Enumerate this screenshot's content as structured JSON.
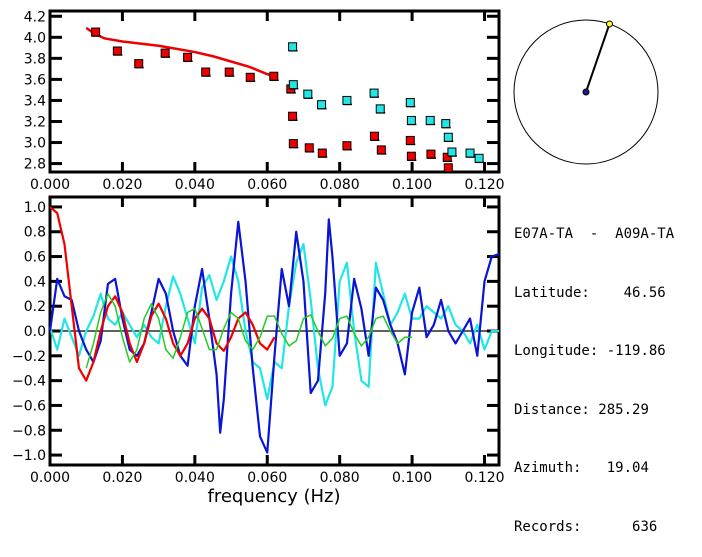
{
  "colors": {
    "red": "#ee0000",
    "cyan": "#22e6e6",
    "blue": "#0a14d4",
    "green": "#22cc22",
    "black": "#000000",
    "yellow": "#ffff33",
    "navy": "#1a1a8a"
  },
  "info_panel": {
    "pair": "E07A-TA  -  A09A-TA",
    "latitude_label": "Latitude:",
    "latitude": "46.56",
    "longitude_label": "Longitude:",
    "longitude": "-119.86",
    "distance_label": "Distance:",
    "distance": "285.29",
    "azimuth_label": "Azimuth:",
    "azimuth": "19.04",
    "records_label": "Records:",
    "records": "636"
  },
  "chart_data": [
    {
      "type": "scatter",
      "title": "",
      "xlabel": "",
      "ylabel": "",
      "xlim": [
        0.0,
        0.124
      ],
      "ylim": [
        2.72,
        4.25
      ],
      "xticks": [
        "0.000",
        "0.020",
        "0.040",
        "0.060",
        "0.080",
        "0.100",
        "0.120"
      ],
      "yticks": [
        "2.8",
        "3.0",
        "3.2",
        "3.4",
        "3.6",
        "3.8",
        "4.0",
        "4.2"
      ],
      "curve": {
        "name": "model",
        "color": "red",
        "x": [
          0.01,
          0.012,
          0.015,
          0.02,
          0.025,
          0.03,
          0.035,
          0.04,
          0.045,
          0.05,
          0.055,
          0.06,
          0.062
        ],
        "y": [
          4.09,
          4.04,
          3.99,
          3.96,
          3.94,
          3.92,
          3.89,
          3.86,
          3.82,
          3.77,
          3.72,
          3.65,
          3.63
        ]
      },
      "series": [
        {
          "name": "red-points",
          "color": "red",
          "x": [
            0.0126,
            0.0186,
            0.0245,
            0.0318,
            0.038,
            0.043,
            0.0495,
            0.0553,
            0.0618,
            0.0665,
            0.067,
            0.0672,
            0.0716,
            0.0752,
            0.082,
            0.0896,
            0.0915,
            0.0995,
            0.0998,
            0.1052,
            0.1097,
            0.11
          ],
          "y": [
            4.05,
            3.87,
            3.75,
            3.85,
            3.81,
            3.67,
            3.67,
            3.62,
            3.63,
            3.51,
            3.25,
            2.99,
            2.95,
            2.9,
            2.97,
            3.06,
            2.93,
            3.02,
            2.87,
            2.89,
            2.86,
            2.76
          ]
        },
        {
          "name": "cyan-points",
          "color": "cyan",
          "x": [
            0.067,
            0.0672,
            0.0712,
            0.075,
            0.082,
            0.0895,
            0.0912,
            0.0995,
            0.0998,
            0.105,
            0.1093,
            0.11,
            0.111,
            0.116,
            0.1185
          ],
          "y": [
            3.91,
            3.55,
            3.46,
            3.36,
            3.4,
            3.47,
            3.32,
            3.38,
            3.21,
            3.21,
            3.18,
            3.05,
            2.91,
            2.9,
            2.85
          ]
        }
      ]
    },
    {
      "type": "line",
      "title": "",
      "xlabel": "frequency (Hz)",
      "ylabel": "",
      "xlim": [
        0.0,
        0.124
      ],
      "ylim": [
        -1.08,
        1.08
      ],
      "xticks": [
        "0.000",
        "0.020",
        "0.040",
        "0.060",
        "0.080",
        "0.100",
        "0.120"
      ],
      "yticks": [
        "-1.0",
        "-0.8",
        "-0.6",
        "-0.4",
        "-0.2",
        "0.0",
        "0.2",
        "0.4",
        "0.6",
        "0.8",
        "1.0"
      ],
      "series": [
        {
          "name": "blue",
          "color": "blue",
          "x": [
            0.0,
            0.002,
            0.004,
            0.006,
            0.008,
            0.01,
            0.012,
            0.014,
            0.016,
            0.018,
            0.02,
            0.022,
            0.024,
            0.026,
            0.028,
            0.03,
            0.032,
            0.034,
            0.036,
            0.038,
            0.04,
            0.042,
            0.044,
            0.046,
            0.047,
            0.048,
            0.05,
            0.052,
            0.054,
            0.056,
            0.058,
            0.06,
            0.062,
            0.064,
            0.066,
            0.068,
            0.07,
            0.072,
            0.074,
            0.076,
            0.077,
            0.078,
            0.08,
            0.082,
            0.084,
            0.086,
            0.088,
            0.09,
            0.092,
            0.094,
            0.096,
            0.098,
            0.1,
            0.102,
            0.104,
            0.106,
            0.108,
            0.11,
            0.112,
            0.114,
            0.116,
            0.118,
            0.12,
            0.122,
            0.124
          ],
          "y": [
            0.0,
            0.42,
            0.28,
            0.25,
            0.0,
            -0.15,
            -0.25,
            -0.08,
            0.38,
            0.42,
            0.1,
            -0.15,
            -0.2,
            -0.1,
            0.15,
            0.42,
            0.3,
            0.0,
            -0.2,
            -0.28,
            0.2,
            0.5,
            0.1,
            -0.35,
            -0.82,
            -0.55,
            0.3,
            0.88,
            0.4,
            -0.3,
            -0.85,
            -0.98,
            -0.2,
            0.5,
            0.2,
            0.8,
            0.4,
            -0.5,
            -0.4,
            0.3,
            0.9,
            0.6,
            -0.2,
            -0.1,
            0.42,
            0.18,
            -0.2,
            0.35,
            0.25,
            0.05,
            -0.1,
            -0.35,
            0.15,
            0.35,
            -0.05,
            0.05,
            0.25,
            0.0,
            -0.1,
            0.0,
            0.1,
            -0.2,
            0.4,
            0.6,
            0.62
          ]
        },
        {
          "name": "cyan",
          "color": "cyan",
          "x": [
            0.0,
            0.002,
            0.004,
            0.006,
            0.008,
            0.01,
            0.012,
            0.014,
            0.016,
            0.018,
            0.02,
            0.022,
            0.024,
            0.026,
            0.028,
            0.03,
            0.032,
            0.034,
            0.036,
            0.038,
            0.04,
            0.042,
            0.044,
            0.046,
            0.048,
            0.05,
            0.052,
            0.054,
            0.056,
            0.058,
            0.06,
            0.062,
            0.064,
            0.066,
            0.068,
            0.07,
            0.072,
            0.074,
            0.076,
            0.078,
            0.08,
            0.082,
            0.084,
            0.086,
            0.088,
            0.09,
            0.092,
            0.094,
            0.096,
            0.098,
            0.1,
            0.102,
            0.104,
            0.106,
            0.108,
            0.11,
            0.112,
            0.114,
            0.116,
            0.118,
            0.12,
            0.122,
            0.124
          ],
          "y": [
            0.03,
            -0.15,
            0.1,
            -0.05,
            -0.2,
            0.0,
            0.12,
            0.3,
            0.1,
            0.05,
            0.15,
            0.05,
            -0.05,
            0.05,
            -0.05,
            -0.1,
            0.2,
            0.44,
            0.3,
            0.1,
            -0.1,
            0.35,
            0.45,
            0.25,
            0.4,
            0.6,
            0.4,
            0.0,
            -0.25,
            -0.3,
            -0.55,
            -0.25,
            -0.3,
            0.2,
            0.55,
            0.7,
            0.25,
            -0.3,
            -0.6,
            -0.45,
            0.4,
            0.55,
            0.0,
            -0.4,
            -0.45,
            0.55,
            0.3,
            0.05,
            0.15,
            0.3,
            0.1,
            0.1,
            0.2,
            0.15,
            0.1,
            0.2,
            0.05,
            0.0,
            -0.1,
            0.05,
            -0.15,
            0.0,
            0.0
          ]
        },
        {
          "name": "red",
          "color": "red",
          "x": [
            0.0,
            0.002,
            0.004,
            0.006,
            0.008,
            0.01,
            0.012,
            0.014,
            0.016,
            0.018,
            0.02,
            0.022,
            0.024,
            0.026,
            0.028,
            0.03,
            0.032,
            0.034,
            0.036,
            0.038,
            0.04,
            0.042,
            0.044,
            0.046,
            0.048,
            0.05,
            0.052,
            0.054,
            0.056,
            0.058,
            0.06,
            0.062
          ],
          "y": [
            1.0,
            0.95,
            0.7,
            0.2,
            -0.3,
            -0.4,
            -0.25,
            0.0,
            0.2,
            0.28,
            0.15,
            -0.1,
            -0.25,
            -0.1,
            0.12,
            0.22,
            0.1,
            -0.1,
            -0.2,
            -0.1,
            0.1,
            0.18,
            0.1,
            -0.1,
            -0.16,
            -0.05,
            0.1,
            0.15,
            0.05,
            -0.1,
            -0.15,
            -0.05
          ]
        },
        {
          "name": "green",
          "color": "green",
          "x": [
            0.01,
            0.012,
            0.014,
            0.016,
            0.018,
            0.02,
            0.022,
            0.024,
            0.026,
            0.028,
            0.03,
            0.032,
            0.034,
            0.036,
            0.038,
            0.04,
            0.042,
            0.044,
            0.046,
            0.048,
            0.05,
            0.052,
            0.054,
            0.056,
            0.058,
            0.06,
            0.062,
            0.064,
            0.066,
            0.068,
            0.07,
            0.072,
            0.074,
            0.076,
            0.078,
            0.08,
            0.082,
            0.084,
            0.086,
            0.088,
            0.09,
            0.092,
            0.094,
            0.096,
            0.098,
            0.1
          ],
          "y": [
            -0.3,
            -0.1,
            0.15,
            0.3,
            0.2,
            -0.05,
            -0.25,
            -0.15,
            0.1,
            0.22,
            0.1,
            -0.15,
            -0.22,
            -0.05,
            0.15,
            0.18,
            0.02,
            -0.15,
            -0.15,
            0.02,
            0.15,
            0.1,
            -0.08,
            -0.15,
            -0.05,
            0.12,
            0.12,
            -0.02,
            -0.12,
            -0.08,
            0.1,
            0.13,
            0.0,
            -0.12,
            -0.06,
            0.1,
            0.12,
            -0.02,
            -0.12,
            -0.05,
            0.1,
            0.12,
            0.0,
            -0.1,
            -0.05,
            -0.05
          ]
        }
      ]
    },
    {
      "type": "azimuth-dial",
      "azimuth_deg": 19.04
    }
  ]
}
